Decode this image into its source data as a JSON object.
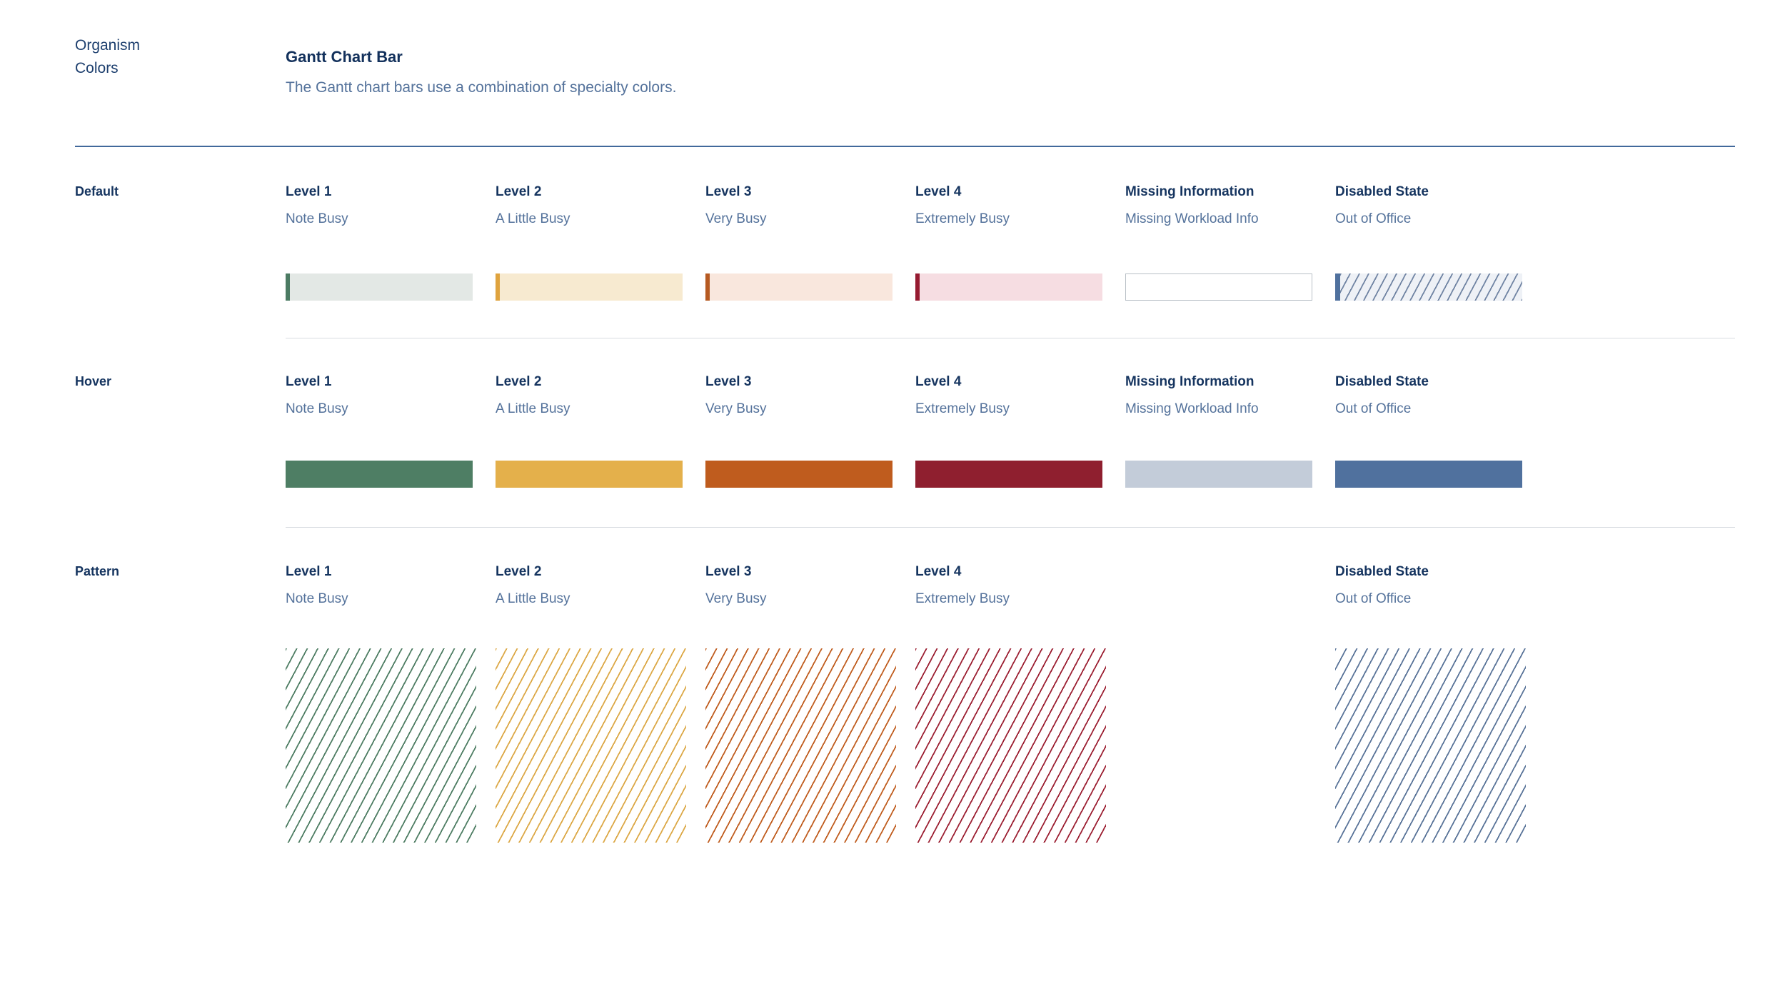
{
  "page": {
    "kind_label": "Organism",
    "category_label": "Colors",
    "title": "Gantt Chart Bar",
    "description": "The Gantt chart bars use a combination of specialty colors."
  },
  "theme_colors": {
    "heading_text": "#15345f",
    "secondary_text": "#54729b",
    "top_rule": "#41699b",
    "row_divider": "#d8dce0",
    "background": "#ffffff"
  },
  "rows": [
    {
      "label": "Default",
      "cells": [
        {
          "heading": "Level 1",
          "sublabel": "Note Busy",
          "swatch": {
            "type": "striped",
            "stripe": "#4c7b63",
            "fill": "#e3e8e5"
          }
        },
        {
          "heading": "Level 2",
          "sublabel": "A Little Busy",
          "swatch": {
            "type": "striped",
            "stripe": "#dfa33e",
            "fill": "#f7ead0"
          }
        },
        {
          "heading": "Level 3",
          "sublabel": "Very Busy",
          "swatch": {
            "type": "striped",
            "stripe": "#b65a22",
            "fill": "#f9e7dd"
          }
        },
        {
          "heading": "Level 4",
          "sublabel": "Extremely Busy",
          "swatch": {
            "type": "striped",
            "stripe": "#961b31",
            "fill": "#f6dde2"
          }
        },
        {
          "heading": "Missing Information",
          "sublabel": "Missing Workload Info",
          "swatch": {
            "type": "outline",
            "fill": "#ffffff",
            "border": "#b9c0c7"
          }
        },
        {
          "heading": "Disabled State",
          "sublabel": "Out of Office",
          "swatch": {
            "type": "hatch",
            "stripe": "#50719e",
            "fill": "#eef1f6",
            "line": "#7084a3"
          }
        }
      ]
    },
    {
      "label": "Hover",
      "cells": [
        {
          "heading": "Level 1",
          "sublabel": "Note Busy",
          "swatch": {
            "type": "solid",
            "fill": "#4e7e64"
          }
        },
        {
          "heading": "Level 2",
          "sublabel": "A Little Busy",
          "swatch": {
            "type": "solid",
            "fill": "#e4b04b"
          }
        },
        {
          "heading": "Level 3",
          "sublabel": "Very Busy",
          "swatch": {
            "type": "solid",
            "fill": "#bf5c1e"
          }
        },
        {
          "heading": "Level 4",
          "sublabel": "Extremely Busy",
          "swatch": {
            "type": "solid",
            "fill": "#8f1f2f"
          }
        },
        {
          "heading": "Missing Information",
          "sublabel": "Missing Workload Info",
          "swatch": {
            "type": "solid",
            "fill": "#c3ccd9"
          }
        },
        {
          "heading": "Disabled State",
          "sublabel": "Out of Office",
          "swatch": {
            "type": "solid",
            "fill": "#50719e"
          }
        }
      ]
    },
    {
      "label": "Pattern",
      "cells": [
        {
          "heading": "Level 1",
          "sublabel": "Note Busy",
          "swatch": {
            "type": "pattern",
            "line": "#4e7d63"
          }
        },
        {
          "heading": "Level 2",
          "sublabel": "A Little Busy",
          "swatch": {
            "type": "pattern",
            "line": "#dca846"
          }
        },
        {
          "heading": "Level 3",
          "sublabel": "Very Busy",
          "swatch": {
            "type": "pattern",
            "line": "#c05d1f"
          }
        },
        {
          "heading": "Level 4",
          "sublabel": "Extremely Busy",
          "swatch": {
            "type": "pattern",
            "line": "#9c2033"
          }
        },
        {
          "heading": "Disabled State",
          "sublabel": "Out of Office",
          "swatch": {
            "type": "pattern",
            "line": "#5a7499"
          }
        }
      ]
    }
  ]
}
